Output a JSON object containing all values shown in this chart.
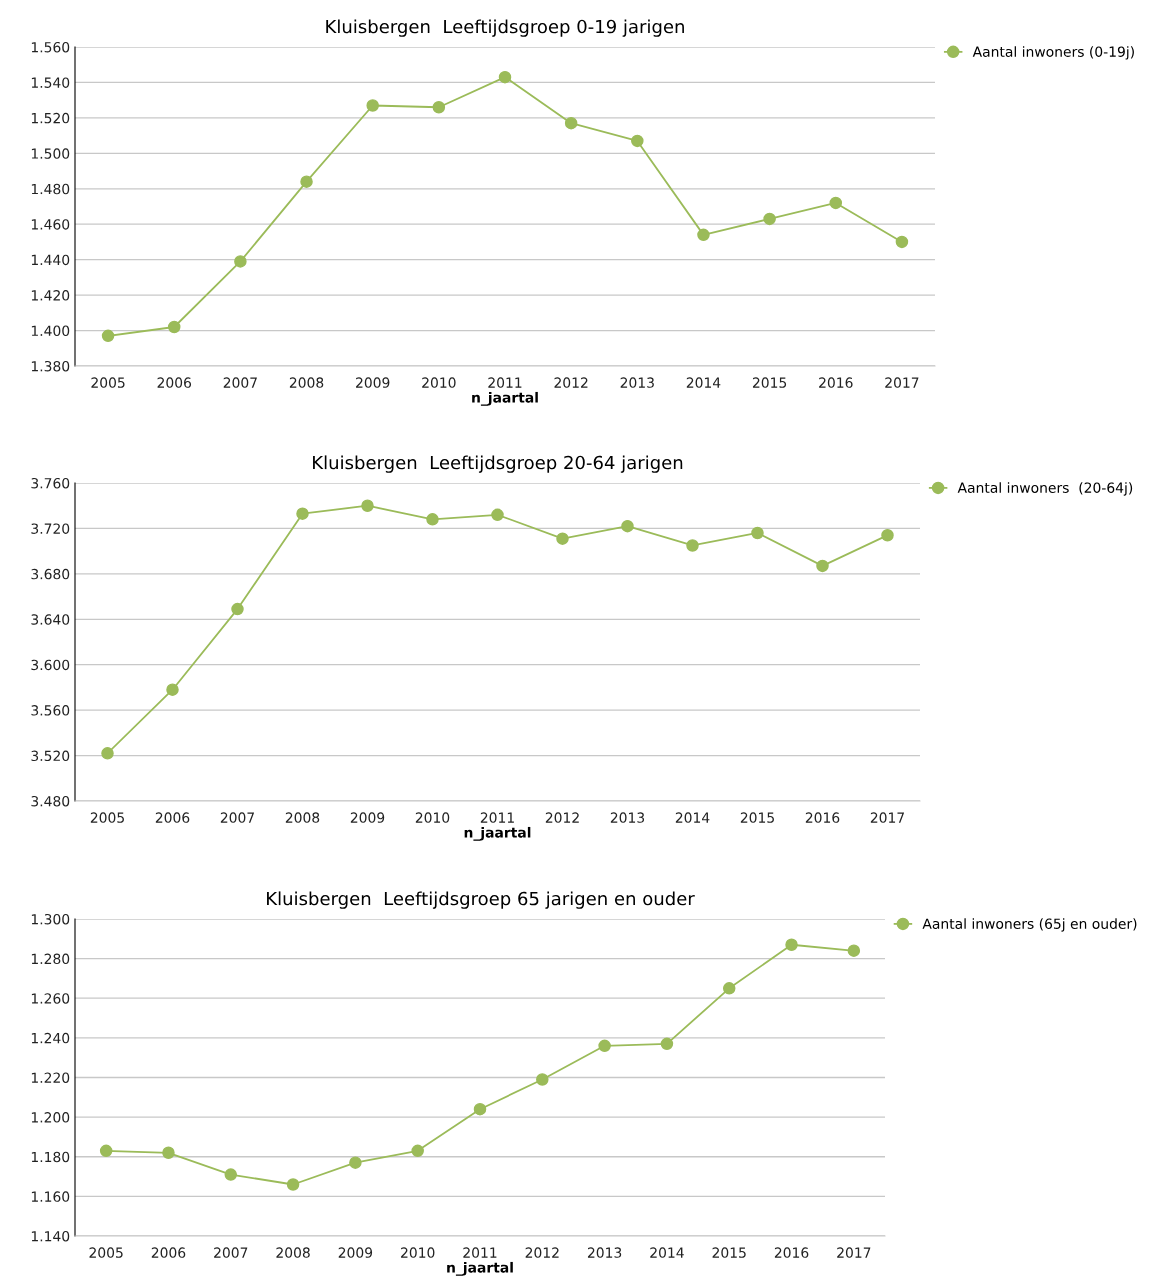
{
  "chart_data": [
    {
      "type": "line",
      "title": "Kluisbergen  Leeftijdsgroep 0-19 jarigen",
      "xlabel": "n_jaartal",
      "categories": [
        "2005",
        "2006",
        "2007",
        "2008",
        "2009",
        "2010",
        "2011",
        "2012",
        "2013",
        "2014",
        "2015",
        "2016",
        "2017"
      ],
      "series": [
        {
          "name": "Aantal inwoners (0-19j)",
          "color": "#9bbb59",
          "values": [
            1397,
            1402,
            1439,
            1484,
            1527,
            1526,
            1543,
            1517,
            1507,
            1454,
            1463,
            1472,
            1450
          ]
        }
      ],
      "ylim": [
        1380,
        1560
      ],
      "yticks": [
        {
          "value": 1380,
          "label": "1.380"
        },
        {
          "value": 1400,
          "label": "1.400"
        },
        {
          "value": 1420,
          "label": "1.420"
        },
        {
          "value": 1440,
          "label": "1.440"
        },
        {
          "value": 1460,
          "label": "1.460"
        },
        {
          "value": 1480,
          "label": "1.480"
        },
        {
          "value": 1500,
          "label": "1.500"
        },
        {
          "value": 1520,
          "label": "1.520"
        },
        {
          "value": 1540,
          "label": "1.540"
        },
        {
          "value": 1560,
          "label": "1.560"
        }
      ],
      "grid": "y",
      "legend": "top right",
      "marker": "circle",
      "line_style": "solid"
    },
    {
      "type": "line",
      "title": "Kluisbergen  Leeftijdsgroep 20-64 jarigen",
      "xlabel": "n_jaartal",
      "categories": [
        "2005",
        "2006",
        "2007",
        "2008",
        "2009",
        "2010",
        "2011",
        "2012",
        "2013",
        "2014",
        "2015",
        "2016",
        "2017"
      ],
      "series": [
        {
          "name": "Aantal inwoners  (20-64j)",
          "color": "#9bbb59",
          "values": [
            3522,
            3578,
            3649,
            3733,
            3740,
            3728,
            3732,
            3711,
            3722,
            3705,
            3716,
            3687,
            3714
          ]
        }
      ],
      "ylim": [
        3480,
        3760
      ],
      "yticks": [
        {
          "value": 3480,
          "label": "3.480"
        },
        {
          "value": 3520,
          "label": "3.520"
        },
        {
          "value": 3560,
          "label": "3.560"
        },
        {
          "value": 3600,
          "label": "3.600"
        },
        {
          "value": 3640,
          "label": "3.640"
        },
        {
          "value": 3680,
          "label": "3.680"
        },
        {
          "value": 3720,
          "label": "3.720"
        },
        {
          "value": 3760,
          "label": "3.760"
        }
      ],
      "grid": "y",
      "legend": "top right",
      "marker": "circle",
      "line_style": "solid"
    },
    {
      "type": "line",
      "title": "Kluisbergen  Leeftijdsgroep 65 jarigen en ouder",
      "xlabel": "n_jaartal",
      "categories": [
        "2005",
        "2006",
        "2007",
        "2008",
        "2009",
        "2010",
        "2011",
        "2012",
        "2013",
        "2014",
        "2015",
        "2016",
        "2017"
      ],
      "series": [
        {
          "name": "Aantal inwoners (65j en ouder)",
          "color": "#9bbb59",
          "values": [
            1183,
            1182,
            1171,
            1166,
            1177,
            1183,
            1204,
            1219,
            1236,
            1237,
            1265,
            1287,
            1284
          ]
        }
      ],
      "ylim": [
        1140,
        1300
      ],
      "yticks": [
        {
          "value": 1140,
          "label": "1.140"
        },
        {
          "value": 1160,
          "label": "1.160"
        },
        {
          "value": 1180,
          "label": "1.180"
        },
        {
          "value": 1200,
          "label": "1.200"
        },
        {
          "value": 1220,
          "label": "1.220"
        },
        {
          "value": 1240,
          "label": "1.240"
        },
        {
          "value": 1260,
          "label": "1.260"
        },
        {
          "value": 1280,
          "label": "1.280"
        },
        {
          "value": 1300,
          "label": "1.300"
        }
      ],
      "grid": "y",
      "legend": "top right",
      "marker": "circle",
      "line_style": "solid"
    }
  ]
}
